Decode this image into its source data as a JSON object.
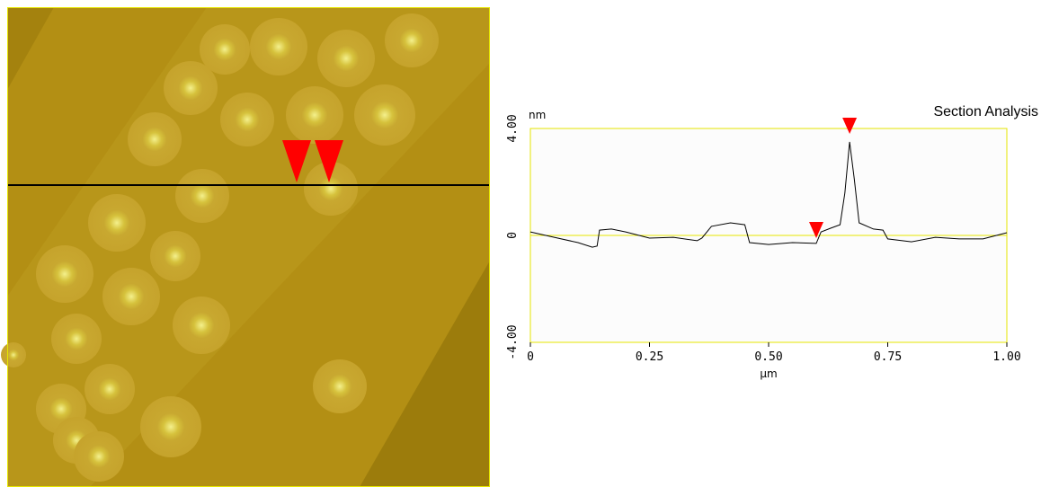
{
  "chart_data": {
    "type": "line",
    "title": "Section Analysis",
    "y_label": "nm",
    "x_label": "µm",
    "x": [
      0,
      0.05,
      0.1,
      0.13,
      0.14,
      0.145,
      0.17,
      0.2,
      0.25,
      0.3,
      0.35,
      0.36,
      0.38,
      0.42,
      0.45,
      0.46,
      0.5,
      0.55,
      0.6,
      0.61,
      0.63,
      0.65,
      0.66,
      0.67,
      0.68,
      0.69,
      0.72,
      0.74,
      0.75,
      0.8,
      0.85,
      0.9,
      0.95,
      1.0
    ],
    "values": [
      0.13,
      -0.07,
      -0.27,
      -0.44,
      -0.4,
      0.2,
      0.24,
      0.13,
      -0.1,
      -0.07,
      -0.2,
      -0.1,
      0.34,
      0.47,
      0.4,
      -0.27,
      -0.34,
      -0.27,
      -0.3,
      0.13,
      0.27,
      0.4,
      1.58,
      3.5,
      2.08,
      0.47,
      0.24,
      0.2,
      -0.13,
      -0.24,
      -0.07,
      -0.13,
      -0.13,
      0.1
    ],
    "color": "#000000",
    "markers": [
      {
        "x": 0.6,
        "y": -0.1
      },
      {
        "x": 0.67,
        "y": 3.8
      }
    ],
    "marker_color": "#ff0000",
    "xlim": [
      0,
      1
    ],
    "ylim": [
      -4,
      4
    ],
    "xticks": [
      0,
      0.25,
      {
        "value": 0.5,
        "label": "0.50"
      },
      0.75,
      {
        "value": 1,
        "label": "1.00"
      }
    ],
    "yticks": [
      {
        "value": -4,
        "label": "-4.00"
      },
      0,
      {
        "value": 4,
        "label": "4.00"
      }
    ],
    "grid": true,
    "grid_color": "#e6e600"
  }
}
